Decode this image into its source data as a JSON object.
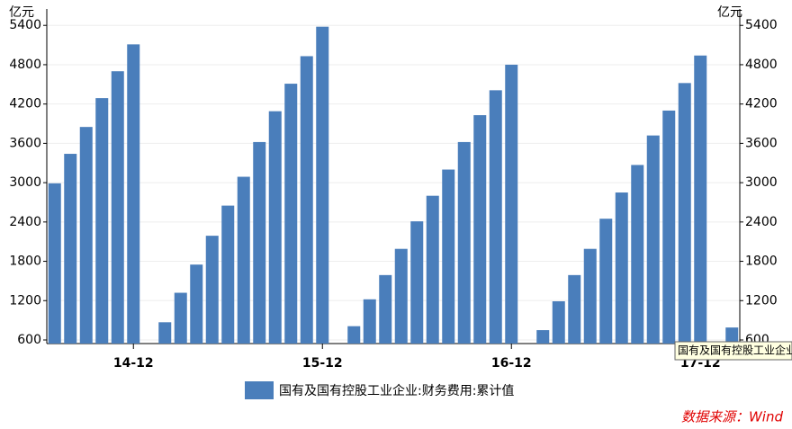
{
  "chart_data": {
    "type": "bar",
    "y_unit": "亿元",
    "y2_unit": "亿元",
    "categories": [
      null,
      null,
      null,
      null,
      null,
      "14-12",
      null,
      null,
      null,
      null,
      null,
      null,
      null,
      null,
      null,
      null,
      null,
      "15-12",
      null,
      null,
      null,
      null,
      null,
      null,
      null,
      null,
      null,
      null,
      null,
      "16-12",
      null,
      null,
      null,
      null,
      null,
      null,
      null,
      null,
      null,
      null,
      null,
      "17-12",
      null,
      null
    ],
    "series": [
      {
        "name": "国有及国有控股工业企业:财务费用:累计值",
        "color": "#4a7ebb",
        "values": [
          2990,
          3440,
          3850,
          4290,
          4700,
          5110,
          null,
          870,
          1320,
          1750,
          2190,
          2650,
          3090,
          3620,
          4090,
          4510,
          4930,
          5380,
          null,
          810,
          1220,
          1590,
          1990,
          2410,
          2800,
          3200,
          3620,
          4030,
          4410,
          4800,
          null,
          750,
          1190,
          1590,
          1990,
          2450,
          2850,
          3270,
          3720,
          4100,
          4520,
          4940,
          null,
          790
        ]
      }
    ],
    "ylim": [
      545,
      5650
    ],
    "yticks": [
      600,
      1200,
      1800,
      2400,
      3000,
      3600,
      4200,
      4800,
      5400
    ],
    "y2lim": [
      545,
      5650
    ],
    "y2ticks": [
      600,
      1200,
      1800,
      2400,
      3000,
      3600,
      4200,
      4800,
      5400
    ],
    "grid": true,
    "tooltip": "国有及国有控股工业企业",
    "source": "数据来源：Wind"
  }
}
